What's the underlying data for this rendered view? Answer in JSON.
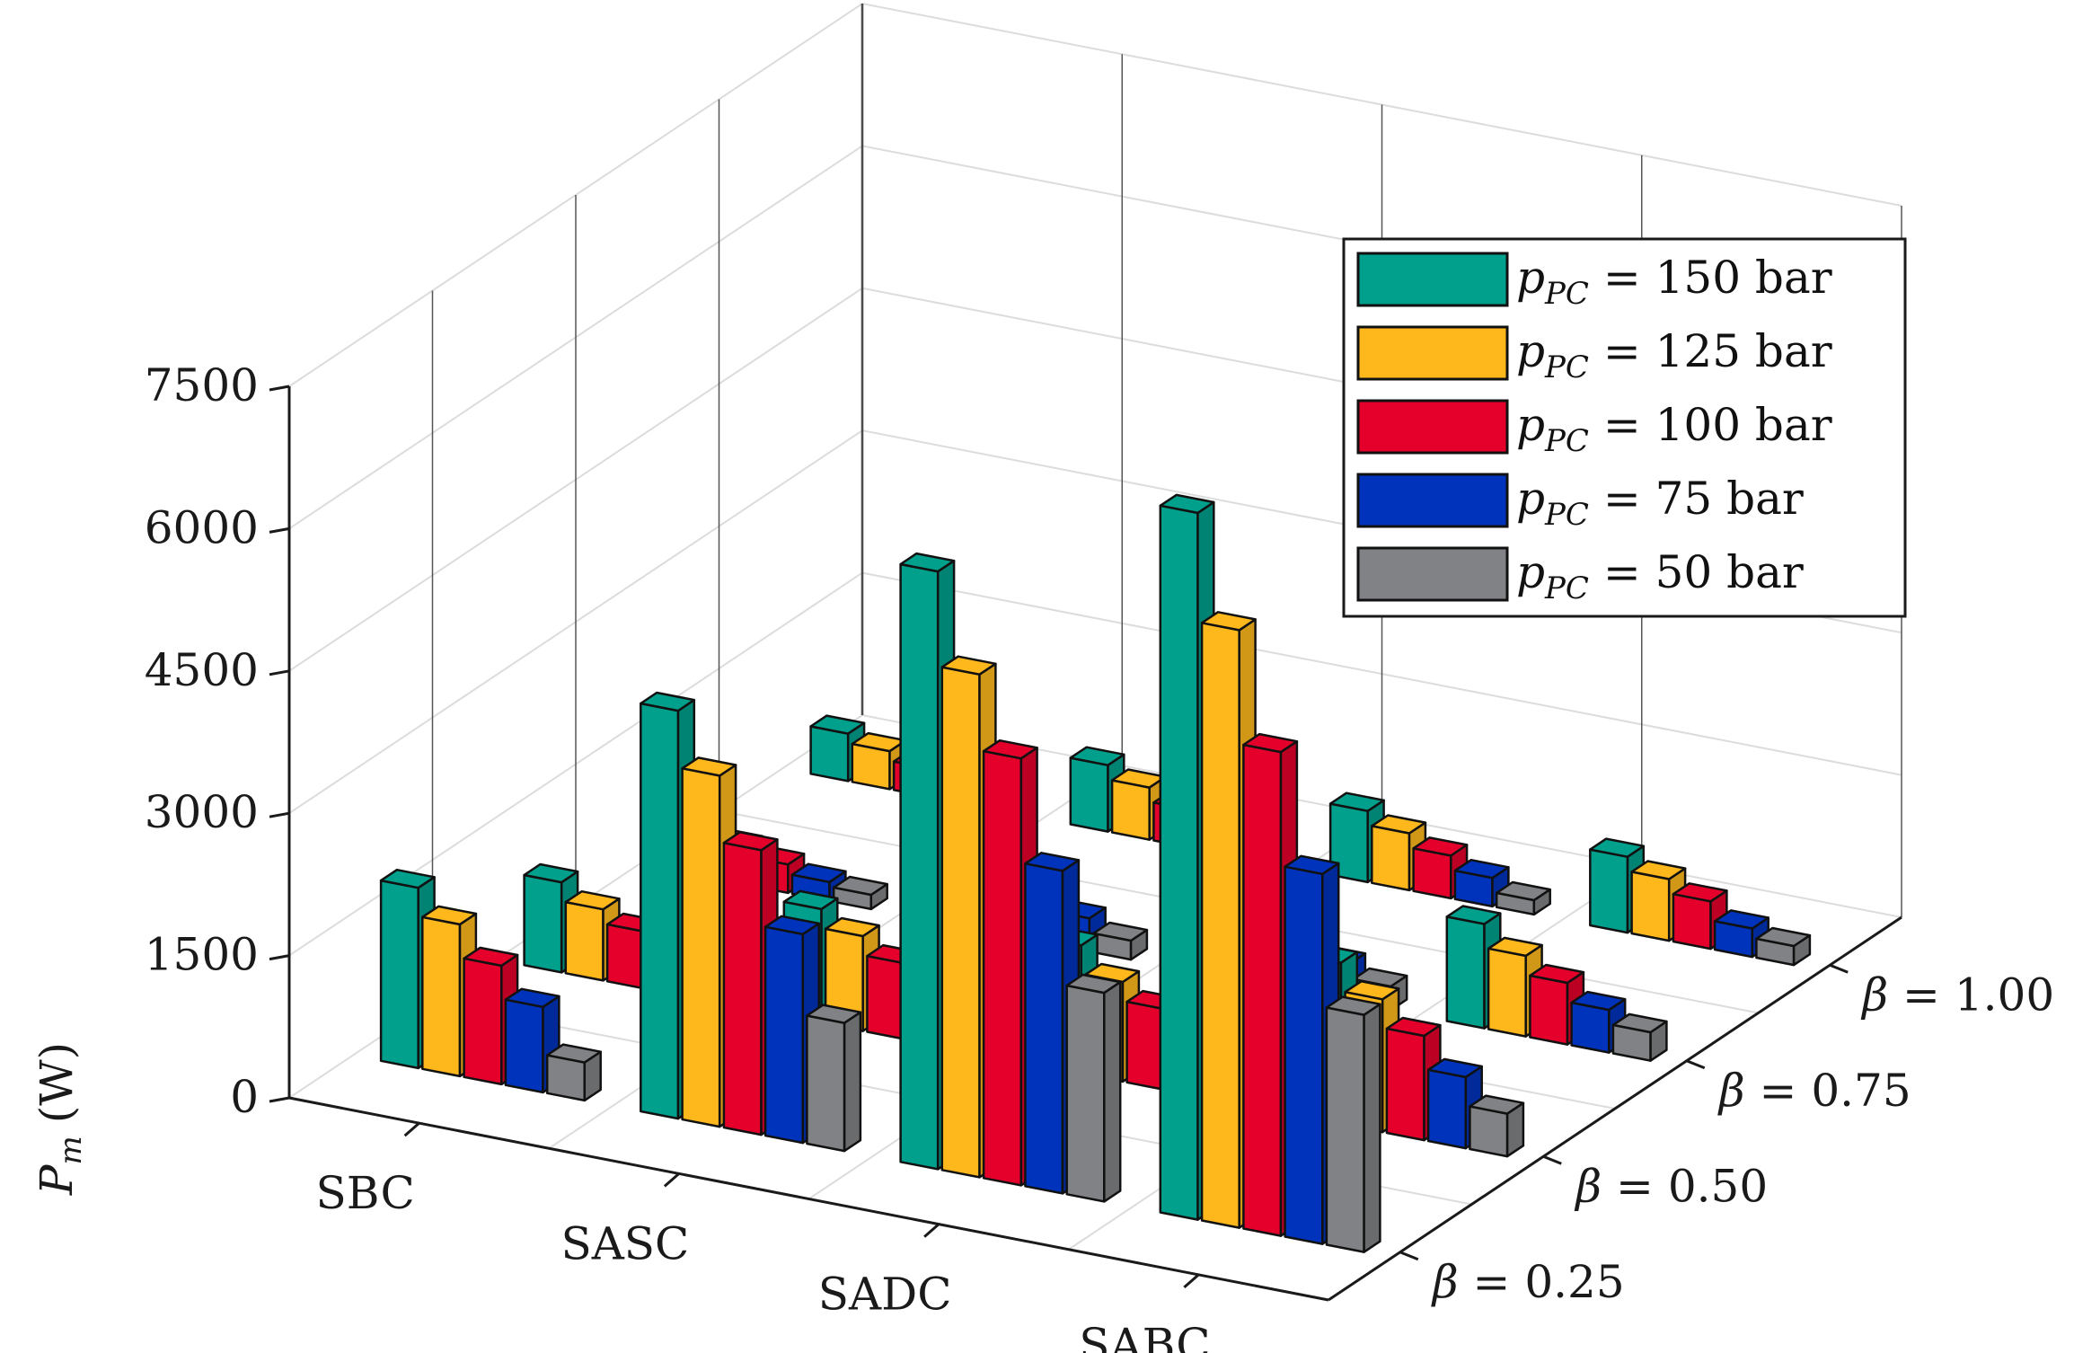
{
  "chart_data": {
    "type": "bar",
    "projection": "3d",
    "title": "",
    "zlabel_symbol": "P",
    "zlabel_subscript": "m",
    "zlabel_unit": "(W)",
    "zlim": [
      0,
      7500
    ],
    "zticks": [
      0,
      1500,
      3000,
      4500,
      6000,
      7500
    ],
    "zticklabels": [
      "0",
      "1500",
      "3000",
      "4500",
      "6000",
      "7500"
    ],
    "categories": [
      "SBC",
      "SASC",
      "SADC",
      "SABC"
    ],
    "beta_levels": [
      {
        "symbol": "β",
        "value_text": " = 0.25"
      },
      {
        "symbol": "β",
        "value_text": " = 0.50"
      },
      {
        "symbol": "β",
        "value_text": " = 0.75"
      },
      {
        "symbol": "β",
        "value_text": " = 1.00"
      }
    ],
    "series": [
      {
        "name": "p_PC = 150 bar",
        "symbol": "p",
        "subscript": "PC",
        "label_text": " = 150 bar",
        "color": "#00A08C",
        "values": [
          [
            1900,
            4300,
            6300,
            7450
          ],
          [
            950,
            1200,
            1350,
            1700
          ],
          [
            500,
            900,
            1000,
            1100
          ],
          [
            500,
            700,
            750,
            800
          ]
        ]
      },
      {
        "name": "p_PC = 125 bar",
        "symbol": "p",
        "subscript": "PC",
        "label_text": " = 125 bar",
        "color": "#FFB81C",
        "values": [
          [
            1600,
            3700,
            5300,
            6300
          ],
          [
            750,
            1000,
            1050,
            1400
          ],
          [
            400,
            750,
            800,
            850
          ],
          [
            400,
            550,
            600,
            650
          ]
        ]
      },
      {
        "name": "p_PC = 100 bar",
        "symbol": "p",
        "subscript": "PC",
        "label_text": " = 100 bar",
        "color": "#E4002B",
        "values": [
          [
            1250,
            3000,
            4500,
            5100
          ],
          [
            600,
            800,
            850,
            1100
          ],
          [
            300,
            550,
            600,
            650
          ],
          [
            300,
            400,
            450,
            500
          ]
        ]
      },
      {
        "name": "p_PC = 75 bar",
        "symbol": "p",
        "subscript": "PC",
        "label_text": " = 75 bar",
        "color": "#0033BB",
        "values": [
          [
            900,
            2200,
            3400,
            3900
          ],
          [
            400,
            550,
            600,
            750
          ],
          [
            200,
            350,
            400,
            450
          ],
          [
            200,
            250,
            300,
            300
          ]
        ]
      },
      {
        "name": "p_PC = 50 bar",
        "symbol": "p",
        "subscript": "PC",
        "label_text": " = 50 bar",
        "color": "#808285",
        "values": [
          [
            400,
            1350,
            2200,
            2500
          ],
          [
            250,
            300,
            300,
            450
          ],
          [
            150,
            200,
            250,
            300
          ],
          [
            150,
            150,
            150,
            200
          ]
        ]
      }
    ],
    "legend_position": "top-right",
    "grid": true
  }
}
